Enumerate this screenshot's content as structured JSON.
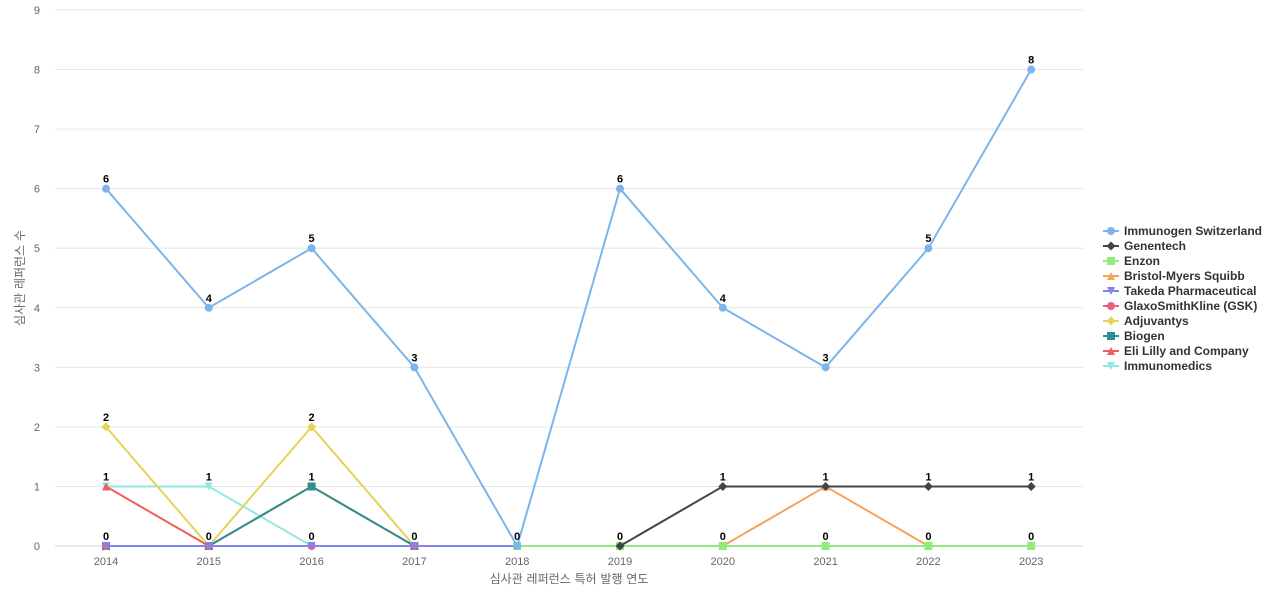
{
  "chart_data": {
    "type": "line",
    "title": "",
    "xlabel": "심사관 레퍼런스 특허 발행 연도",
    "ylabel": "심사관 레퍼런스 수",
    "ylim": [
      0,
      9
    ],
    "yticks": [
      0,
      1,
      2,
      3,
      4,
      5,
      6,
      7,
      8,
      9
    ],
    "categories": [
      "2014",
      "2015",
      "2016",
      "2017",
      "2018",
      "2019",
      "2020",
      "2021",
      "2022",
      "2023"
    ],
    "grid": true,
    "legend_position": "right",
    "series": [
      {
        "name": "Immunogen Switzerland",
        "color": "#7cb5ec",
        "marker": "circle",
        "values": [
          6,
          4,
          5,
          3,
          0,
          6,
          4,
          3,
          5,
          8
        ]
      },
      {
        "name": "Genentech",
        "color": "#434348",
        "marker": "diamond",
        "values": [
          null,
          null,
          null,
          null,
          null,
          0,
          1,
          1,
          1,
          1
        ]
      },
      {
        "name": "Enzon",
        "color": "#90ed7d",
        "marker": "square",
        "values": [
          null,
          null,
          null,
          null,
          0,
          0,
          0,
          0,
          0,
          0
        ]
      },
      {
        "name": "Bristol-Myers Squibb",
        "color": "#f7a35c",
        "marker": "triangle",
        "values": [
          null,
          null,
          null,
          null,
          null,
          null,
          0,
          1,
          0,
          null
        ]
      },
      {
        "name": "Takeda Pharmaceutical",
        "color": "#8085e9",
        "marker": "triangle-down",
        "values": [
          0,
          0,
          0,
          0,
          0,
          0,
          0,
          0,
          0,
          0
        ]
      },
      {
        "name": "GlaxoSmithKline (GSK)",
        "color": "#f15c80",
        "marker": "circle",
        "values": [
          0,
          0,
          0,
          0,
          0,
          0,
          0,
          0,
          0,
          0
        ]
      },
      {
        "name": "Adjuvantys",
        "color": "#e4d354",
        "marker": "diamond",
        "values": [
          2,
          0,
          2,
          0,
          null,
          null,
          null,
          null,
          null,
          null
        ]
      },
      {
        "name": "Biogen",
        "color": "#2b908f",
        "marker": "square",
        "values": [
          0,
          0,
          1,
          0,
          null,
          null,
          null,
          null,
          null,
          null
        ]
      },
      {
        "name": "Eli Lilly and Company",
        "color": "#f45b5b",
        "marker": "triangle",
        "values": [
          1,
          0,
          1,
          0,
          null,
          null,
          null,
          null,
          null,
          null
        ]
      },
      {
        "name": "Immunomedics",
        "color": "#91e8e1",
        "marker": "triangle-down",
        "values": [
          1,
          1,
          0,
          0,
          0,
          0,
          0,
          0,
          0,
          0
        ]
      }
    ],
    "data_labels": [
      {
        "x": "2014",
        "values": [
          "6",
          "2",
          "1",
          "0"
        ]
      },
      {
        "x": "2015",
        "values": [
          "4",
          "1",
          "0"
        ]
      },
      {
        "x": "2016",
        "values": [
          "5",
          "2",
          "1",
          "0"
        ]
      },
      {
        "x": "2017",
        "values": [
          "3",
          "0"
        ]
      },
      {
        "x": "2018",
        "values": [
          "0"
        ]
      },
      {
        "x": "2019",
        "values": [
          "6",
          "0"
        ]
      },
      {
        "x": "2020",
        "values": [
          "4",
          "1",
          "0"
        ]
      },
      {
        "x": "2021",
        "values": [
          "3",
          "1",
          "0"
        ]
      },
      {
        "x": "2022",
        "values": [
          "5",
          "1",
          "0"
        ]
      },
      {
        "x": "2023",
        "values": [
          "8",
          "1",
          "0"
        ]
      }
    ]
  }
}
